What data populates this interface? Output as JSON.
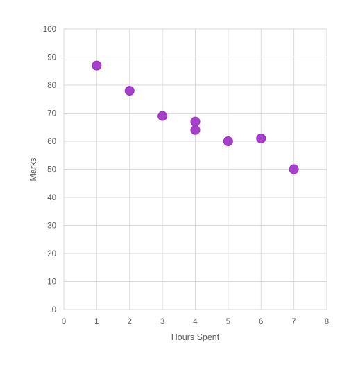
{
  "chart_data": {
    "type": "scatter",
    "title": "",
    "xlabel": "Hours Spent",
    "ylabel": "Marks",
    "xlim": [
      0,
      8
    ],
    "ylim": [
      0,
      100
    ],
    "x_ticks": [
      "0",
      "1",
      "2",
      "3",
      "4",
      "5",
      "6",
      "7",
      "8"
    ],
    "y_ticks": [
      "0",
      "10",
      "20",
      "30",
      "40",
      "50",
      "60",
      "70",
      "80",
      "90",
      "100"
    ],
    "grid": true,
    "legend": "none",
    "series": [
      {
        "color": "#a53fcc",
        "points": [
          {
            "x": 1,
            "y": 87
          },
          {
            "x": 2,
            "y": 78
          },
          {
            "x": 3,
            "y": 69
          },
          {
            "x": 4,
            "y": 67
          },
          {
            "x": 4,
            "y": 64
          },
          {
            "x": 5,
            "y": 60
          },
          {
            "x": 6,
            "y": 61
          },
          {
            "x": 7,
            "y": 50
          }
        ]
      }
    ]
  }
}
